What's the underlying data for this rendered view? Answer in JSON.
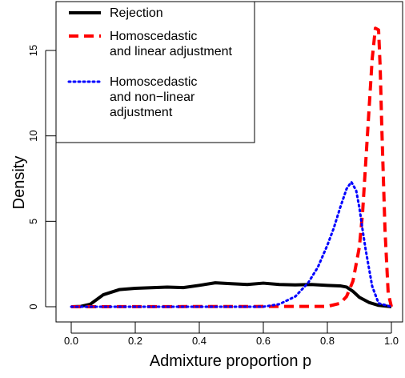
{
  "chart_data": {
    "type": "line",
    "title": "",
    "xlabel": "Admixture proportion p",
    "ylabel": "Density",
    "xlim": [
      0,
      1
    ],
    "ylim": [
      0,
      16.5
    ],
    "x_ticks": [
      0.0,
      0.2,
      0.4,
      0.6,
      0.8,
      1.0
    ],
    "x_tick_labels": [
      "0.0",
      "0.2",
      "0.4",
      "0.6",
      "0.8",
      "1.0"
    ],
    "y_ticks": [
      0,
      5,
      10,
      15
    ],
    "y_tick_labels": [
      "0",
      "5",
      "10",
      "15"
    ],
    "grid": false,
    "legend_position": "top-left",
    "series": [
      {
        "name": "Rejection",
        "label_lines": [
          "Rejection"
        ],
        "color": "#000000",
        "style": "solid",
        "x": [
          0.0,
          0.03,
          0.06,
          0.1,
          0.15,
          0.2,
          0.3,
          0.35,
          0.4,
          0.45,
          0.5,
          0.55,
          0.6,
          0.65,
          0.7,
          0.75,
          0.8,
          0.84,
          0.86,
          0.88,
          0.9,
          0.93,
          0.96,
          1.0
        ],
        "values": [
          0.0,
          0.02,
          0.15,
          0.7,
          1.0,
          1.08,
          1.15,
          1.12,
          1.25,
          1.4,
          1.35,
          1.3,
          1.38,
          1.3,
          1.28,
          1.3,
          1.25,
          1.22,
          1.15,
          0.9,
          0.55,
          0.25,
          0.08,
          0.0
        ]
      },
      {
        "name": "Homoscedastic and linear adjustment",
        "label_lines": [
          "Homoscedastic",
          "and linear adjustment"
        ],
        "color": "#ff0000",
        "style": "dashed",
        "x": [
          0.0,
          0.8,
          0.84,
          0.86,
          0.88,
          0.9,
          0.91,
          0.92,
          0.93,
          0.94,
          0.95,
          0.96,
          0.965,
          0.97,
          0.98,
          0.99,
          1.0
        ],
        "values": [
          0.0,
          0.02,
          0.2,
          0.6,
          1.5,
          3.5,
          5.5,
          8.5,
          11.5,
          14.5,
          16.3,
          16.2,
          14.0,
          10.5,
          4.5,
          0.8,
          0.0
        ]
      },
      {
        "name": "Homoscedastic and non-linear adjustment",
        "label_lines": [
          "Homoscedastic",
          "and non−linear",
          "adjustment"
        ],
        "color": "#0000ff",
        "style": "dotted",
        "x": [
          0.0,
          0.6,
          0.65,
          0.7,
          0.74,
          0.77,
          0.8,
          0.82,
          0.84,
          0.86,
          0.875,
          0.89,
          0.9,
          0.91,
          0.92,
          0.94,
          0.96,
          1.0
        ],
        "values": [
          0.0,
          0.0,
          0.15,
          0.6,
          1.4,
          2.3,
          3.6,
          4.6,
          5.8,
          6.9,
          7.3,
          6.8,
          5.8,
          4.5,
          3.3,
          1.2,
          0.2,
          0.0
        ]
      }
    ]
  }
}
